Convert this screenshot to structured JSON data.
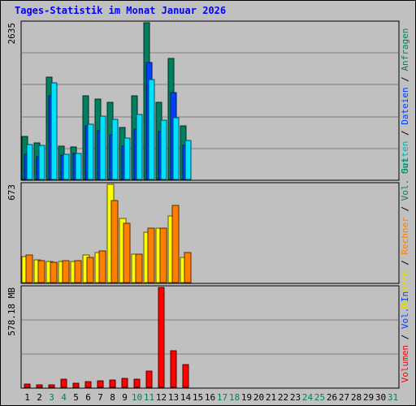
{
  "title": "Tages-Statistik im Monat Januar 2026",
  "chart_data": [
    {
      "type": "bar",
      "x": [
        1,
        2,
        3,
        4,
        5,
        6,
        7,
        8,
        9,
        10,
        11,
        12,
        13,
        14
      ],
      "ymax_label": "2635",
      "ylim": [
        0,
        2635
      ],
      "series": [
        {
          "name": "Anfragen",
          "color": "#008060",
          "values": [
            720,
            610,
            1720,
            560,
            540,
            1410,
            1350,
            1300,
            870,
            1400,
            2635,
            1300,
            2040,
            900
          ]
        },
        {
          "name": "Dateien",
          "color": "#0040ff",
          "values": [
            430,
            380,
            1400,
            410,
            440,
            900,
            820,
            750,
            560,
            850,
            1970,
            800,
            1460,
            580
          ]
        },
        {
          "name": "Seiten",
          "color": "#00e0ff",
          "values": [
            590,
            570,
            1620,
            430,
            440,
            930,
            1060,
            1010,
            690,
            1090,
            1680,
            1000,
            1040,
            660
          ]
        }
      ],
      "legend_right": [
        {
          "text": "Seiten",
          "color": "#00b0b0"
        },
        {
          "text": " / ",
          "color": "#000000"
        },
        {
          "text": "Dateien",
          "color": "#0040ff"
        },
        {
          "text": " / ",
          "color": "#000000"
        },
        {
          "text": "Anfragen",
          "color": "#008060"
        }
      ]
    },
    {
      "type": "bar",
      "x": [
        1,
        2,
        3,
        4,
        5,
        6,
        7,
        8,
        9,
        10,
        11,
        12,
        13,
        14
      ],
      "ymax_label": "673",
      "ylim": [
        0,
        673
      ],
      "series": [
        {
          "name": "Besuche",
          "color": "#ffff00",
          "values": [
            180,
            155,
            145,
            145,
            145,
            190,
            205,
            673,
            440,
            195,
            345,
            370,
            455,
            175
          ]
        },
        {
          "name": "Rechner",
          "color": "#ff8000",
          "values": [
            190,
            150,
            140,
            150,
            150,
            170,
            215,
            560,
            405,
            195,
            375,
            375,
            530,
            205
          ]
        }
      ],
      "legend_right": [
        {
          "text": "Besuche",
          "color": "#e0e000"
        },
        {
          "text": " / ",
          "color": "#000000"
        },
        {
          "text": "Rechner",
          "color": "#ff8000"
        },
        {
          "text": " / ",
          "color": "#000000"
        },
        {
          "text": "Vol. Out",
          "color": "#008060"
        }
      ]
    },
    {
      "type": "bar",
      "x": [
        1,
        2,
        3,
        4,
        5,
        6,
        7,
        8,
        9,
        10,
        11,
        12,
        13,
        14
      ],
      "ymax_label": "578.18 MB",
      "ylim": [
        0,
        578.18
      ],
      "series": [
        {
          "name": "Volumen",
          "color": "#ff0000",
          "values": [
            20,
            14,
            16,
            46,
            22,
            35,
            37,
            40,
            50,
            47,
            92,
            578.18,
            212,
            130
          ]
        }
      ],
      "legend_right": [
        {
          "text": "Volumen",
          "color": "#ff0000"
        },
        {
          "text": " / ",
          "color": "#000000"
        },
        {
          "text": "Vol. In",
          "color": "#0040ff"
        }
      ]
    }
  ],
  "x_labels": [
    {
      "text": "1",
      "color": "#000000"
    },
    {
      "text": "2",
      "color": "#000000"
    },
    {
      "text": "3",
      "color": "#008060"
    },
    {
      "text": "4",
      "color": "#008060"
    },
    {
      "text": "5",
      "color": "#000000"
    },
    {
      "text": "6",
      "color": "#000000"
    },
    {
      "text": "7",
      "color": "#000000"
    },
    {
      "text": "8",
      "color": "#000000"
    },
    {
      "text": "9",
      "color": "#000000"
    },
    {
      "text": "10",
      "color": "#008060"
    },
    {
      "text": "11",
      "color": "#008060"
    },
    {
      "text": "12",
      "color": "#000000"
    },
    {
      "text": "13",
      "color": "#000000"
    },
    {
      "text": "14",
      "color": "#000000"
    },
    {
      "text": "15",
      "color": "#000000"
    },
    {
      "text": "16",
      "color": "#000000"
    },
    {
      "text": "17",
      "color": "#008060"
    },
    {
      "text": "18",
      "color": "#008060"
    },
    {
      "text": "19",
      "color": "#000000"
    },
    {
      "text": "20",
      "color": "#000000"
    },
    {
      "text": "21",
      "color": "#000000"
    },
    {
      "text": "22",
      "color": "#000000"
    },
    {
      "text": "23",
      "color": "#000000"
    },
    {
      "text": "24",
      "color": "#008060"
    },
    {
      "text": "25",
      "color": "#008060"
    },
    {
      "text": "26",
      "color": "#000000"
    },
    {
      "text": "27",
      "color": "#000000"
    },
    {
      "text": "28",
      "color": "#000000"
    },
    {
      "text": "29",
      "color": "#000000"
    },
    {
      "text": "30",
      "color": "#000000"
    },
    {
      "text": "31",
      "color": "#008060"
    }
  ]
}
